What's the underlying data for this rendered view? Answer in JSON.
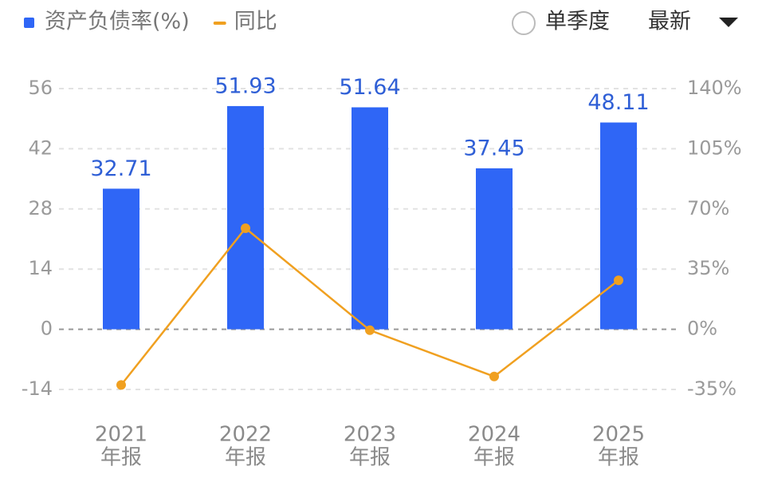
{
  "chart_data": {
    "type": "bar",
    "categories": [
      [
        "2021",
        "年报"
      ],
      [
        "2022",
        "年报"
      ],
      [
        "2023",
        "年报"
      ],
      [
        "2024",
        "年报"
      ],
      [
        "2025",
        "年报"
      ]
    ],
    "series": [
      {
        "name": "资产负债率(%)",
        "type": "bar",
        "color": "#2f66f6",
        "values": [
          32.71,
          51.93,
          51.64,
          37.45,
          48.11
        ]
      },
      {
        "name": "同比",
        "type": "line",
        "axis": "y2",
        "color": "#f0a020",
        "values": [
          -32.4,
          58.76,
          -0.56,
          -27.48,
          28.46
        ]
      }
    ],
    "ylim": [
      -14,
      56
    ],
    "yticks": [
      -14,
      0,
      14,
      28,
      42,
      56
    ],
    "y2lim": [
      -35,
      140
    ],
    "y2ticks": [
      {
        "value": -35,
        "label": "-35%"
      },
      {
        "value": 0,
        "label": "0%"
      },
      {
        "value": 35,
        "label": "35%"
      },
      {
        "value": 70,
        "label": "70%"
      },
      {
        "value": 105,
        "label": "105%"
      },
      {
        "value": 140,
        "label": "140%"
      }
    ],
    "grid": true
  },
  "controls": {
    "single_quarter": "单季度",
    "latest": "最新"
  }
}
